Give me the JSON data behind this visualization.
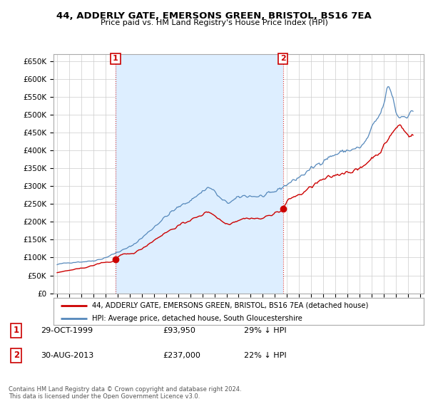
{
  "title": "44, ADDERLY GATE, EMERSONS GREEN, BRISTOL, BS16 7EA",
  "subtitle": "Price paid vs. HM Land Registry's House Price Index (HPI)",
  "legend_line1": "44, ADDERLY GATE, EMERSONS GREEN, BRISTOL, BS16 7EA (detached house)",
  "legend_line2": "HPI: Average price, detached house, South Gloucestershire",
  "sale1_date": "29-OCT-1999",
  "sale1_price": "£93,950",
  "sale1_hpi": "29% ↓ HPI",
  "sale2_date": "30-AUG-2013",
  "sale2_price": "£237,000",
  "sale2_hpi": "22% ↓ HPI",
  "footer": "Contains HM Land Registry data © Crown copyright and database right 2024.\nThis data is licensed under the Open Government Licence v3.0.",
  "red_color": "#cc0000",
  "blue_color": "#5588bb",
  "fill_color": "#ddeeff",
  "background_color": "#ffffff",
  "grid_color": "#cccccc",
  "sale1_x": 1999.83,
  "sale1_y": 93950,
  "sale2_x": 2013.67,
  "sale2_y": 237000,
  "ylim": [
    0,
    670000
  ],
  "xlim_start": 1994.7,
  "xlim_end": 2025.3
}
